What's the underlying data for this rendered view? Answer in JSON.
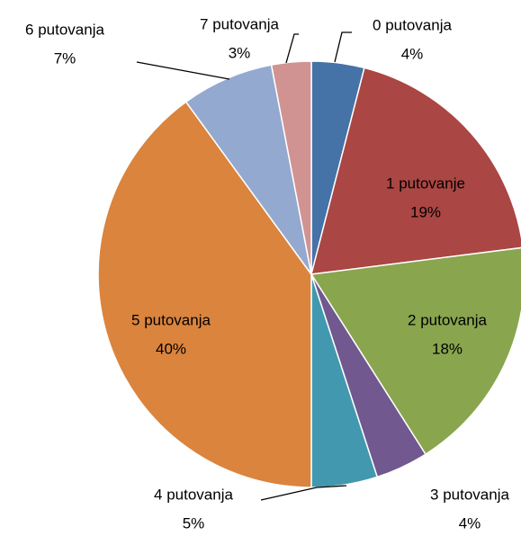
{
  "chart_data": {
    "type": "pie",
    "categories": [
      "0 putovanja",
      "1 putovanje",
      "2 putovanja",
      "3 putovanja",
      "4 putovanja",
      "5 putovanja",
      "6 putovanja",
      "7 putovanja"
    ],
    "values": [
      4,
      19,
      18,
      4,
      5,
      40,
      7,
      3
    ],
    "value_labels": [
      "4%",
      "19%",
      "18%",
      "4%",
      "5%",
      "40%",
      "7%",
      "3%"
    ],
    "colors": [
      "#4572a7",
      "#aa4643",
      "#89a54e",
      "#71588f",
      "#4198af",
      "#db843d",
      "#93a9cf",
      "#d19392"
    ]
  }
}
